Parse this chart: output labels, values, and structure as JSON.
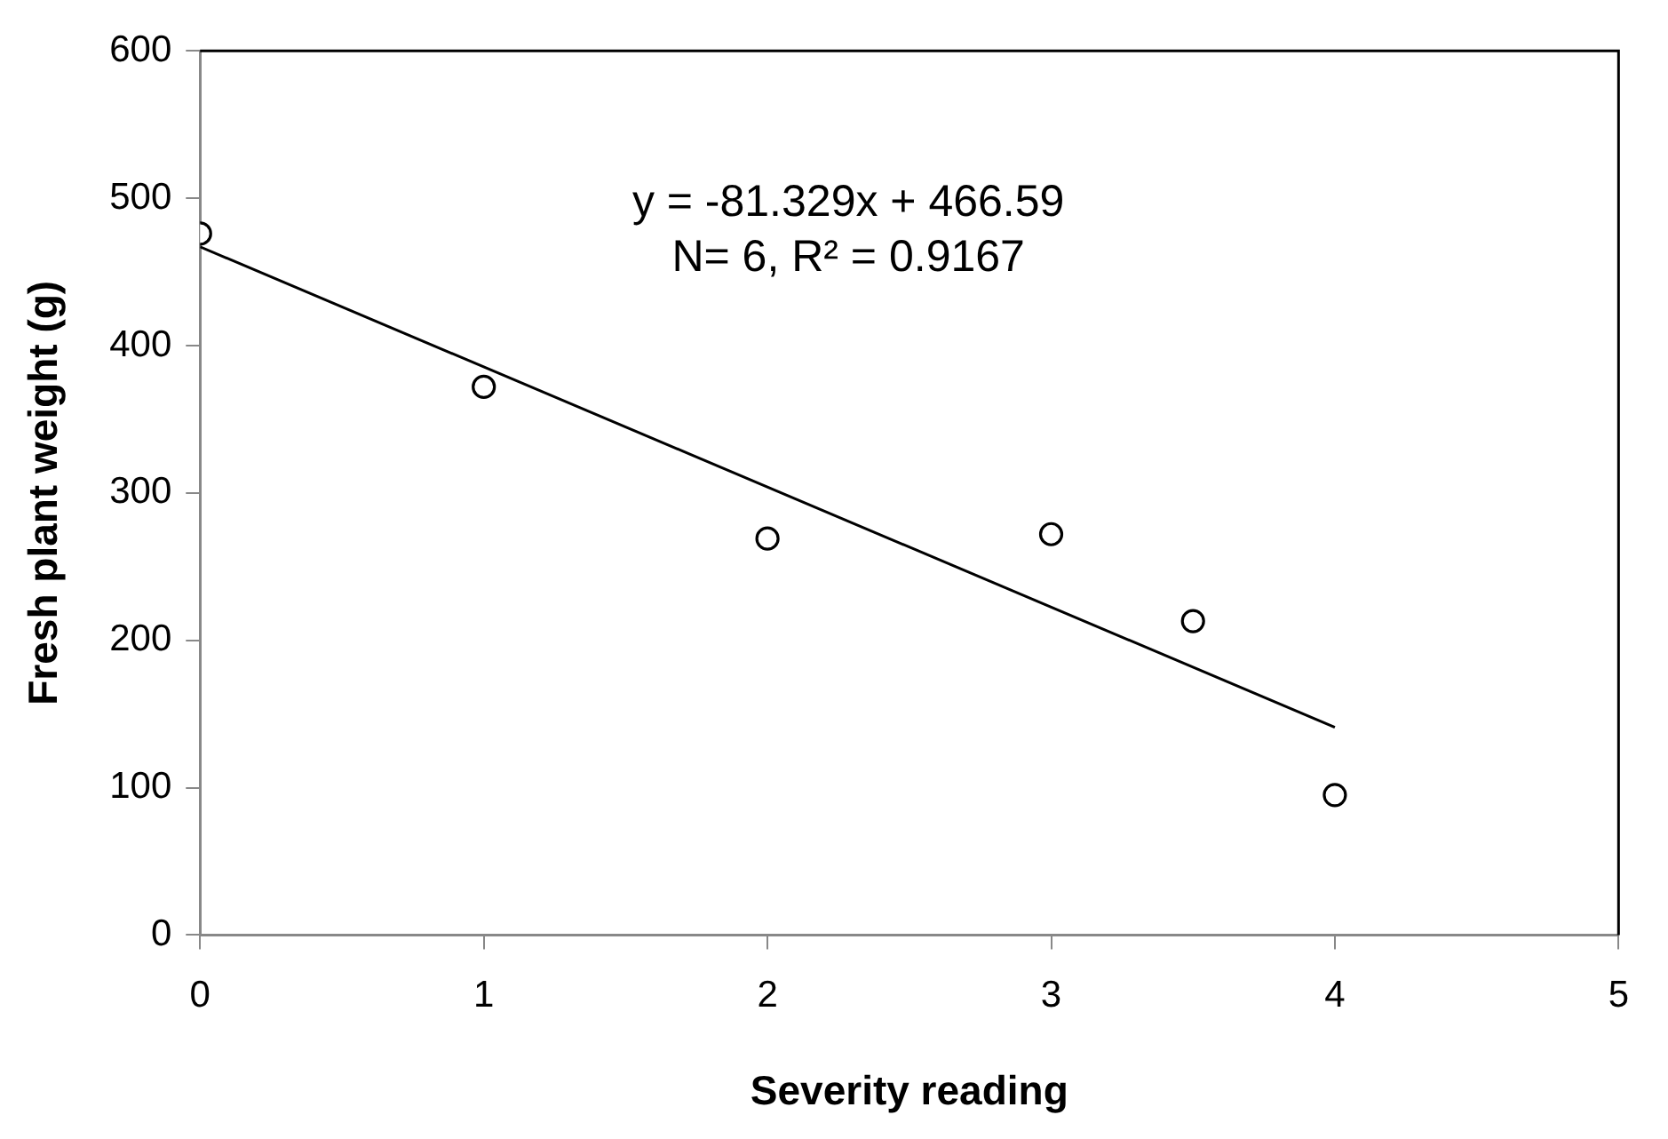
{
  "chart_data": {
    "type": "scatter",
    "xlabel": "Severity reading",
    "ylabel": "Fresh plant weight (g)",
    "annotations": [
      "y = -81.329x + 466.59",
      "N= 6, R² = 0.9167"
    ],
    "xlim": [
      0,
      5
    ],
    "xticks": [
      0,
      1,
      2,
      3,
      4,
      5
    ],
    "ylim": [
      0,
      600
    ],
    "yticks": [
      0,
      100,
      200,
      300,
      400,
      500,
      600
    ],
    "grid": false,
    "legend": false,
    "marker": "circle",
    "series": [
      {
        "color": "#000000",
        "x": [
          0,
          1,
          2,
          3,
          3.5,
          4
        ],
        "values": [
          476,
          372,
          269,
          272,
          213,
          95
        ]
      },
      {
        "type": "line",
        "color": "#000000",
        "x": [
          0,
          4
        ],
        "values": [
          467,
          141
        ],
        "marker": "none",
        "line_style": "solid"
      }
    ]
  }
}
